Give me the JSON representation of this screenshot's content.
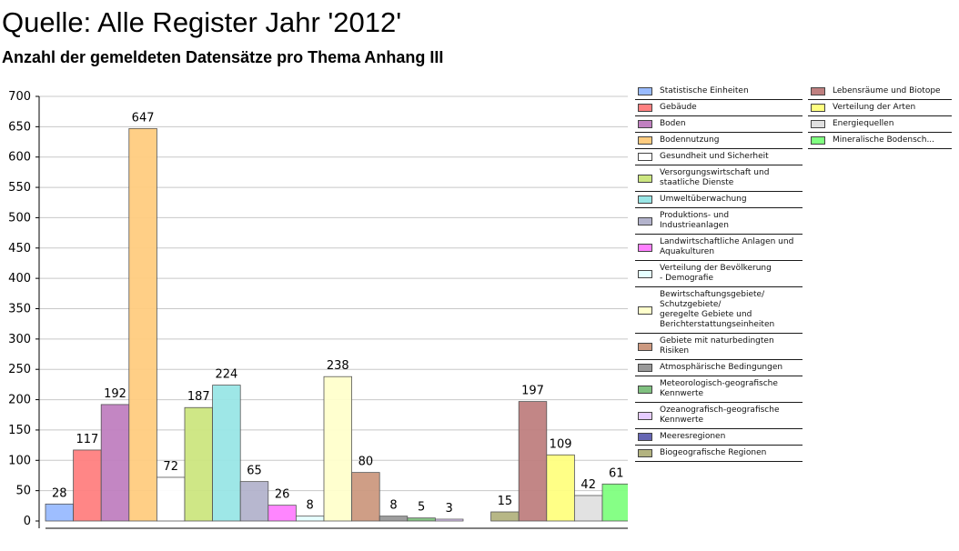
{
  "header": {
    "title": "Quelle: Alle Register Jahr '2012'",
    "subtitle": "Anzahl der gemeldeten Datensätze pro Thema Anhang III"
  },
  "chart_data": {
    "type": "bar",
    "ylim": [
      0,
      700
    ],
    "yticks": [
      0,
      50,
      100,
      150,
      200,
      250,
      300,
      350,
      400,
      450,
      500,
      550,
      600,
      650,
      700
    ],
    "grid": true,
    "legend_position": "right",
    "categories": [
      "Statistische Einheiten",
      "Gebäude",
      "Boden",
      "Bodennutzung",
      "Gesundheit und Sicherheit",
      "Versorgungswirtschaft und\nstaatliche Dienste",
      "Umweltüberwachung",
      "Produktions- und\nIndustrieanlagen",
      "Landwirtschaftliche Anlagen und\nAquakulturen",
      "Verteilung der Bevölkerung\n- Demografie",
      "Bewirtschaftungsgebiete/\nSchutzgebiete/\ngeregelte Gebiete und\nBerichterstattungseinheiten",
      "Gebiete mit naturbedingten\nRisiken",
      "Atmosphärische Bedingungen",
      "Meteorologisch-geografische\nKennwerte",
      "Ozeanografisch-geografische\nKennwerte",
      "Meeresregionen",
      "Biogeografische Regionen",
      "Lebensräume und Biotope",
      "Verteilung der Arten",
      "Energiequellen",
      "Mineralische Bodensch..."
    ],
    "values": [
      28,
      117,
      192,
      647,
      72,
      187,
      224,
      65,
      26,
      8,
      238,
      80,
      8,
      5,
      3,
      0,
      15,
      197,
      109,
      42,
      61
    ],
    "value_labels": [
      "28",
      "117",
      "192",
      "647",
      "72",
      "187",
      "224",
      "65",
      "26",
      "8",
      "238",
      "80",
      "8",
      "5",
      "3",
      "",
      "15",
      "197",
      "109",
      "42",
      "61"
    ],
    "colors": [
      "#99bbff",
      "#ff8080",
      "#c080c0",
      "#ffcc80",
      "#ffffff",
      "#cce680",
      "#99e6e6",
      "#b3b3cc",
      "#ff80ff",
      "#e6ffff",
      "#ffffcc",
      "#cc9980",
      "#999999",
      "#80c080",
      "#e6ccff",
      "#6666b3",
      "#b3b380",
      "#bf8080",
      "#ffff80",
      "#e0e0e0",
      "#80ff80"
    ],
    "legend_columns": [
      [
        0,
        1,
        2,
        3,
        4,
        5,
        6,
        7,
        8,
        9,
        10,
        11,
        12,
        13,
        14,
        15,
        16
      ],
      [
        17,
        18,
        19,
        20
      ]
    ]
  }
}
